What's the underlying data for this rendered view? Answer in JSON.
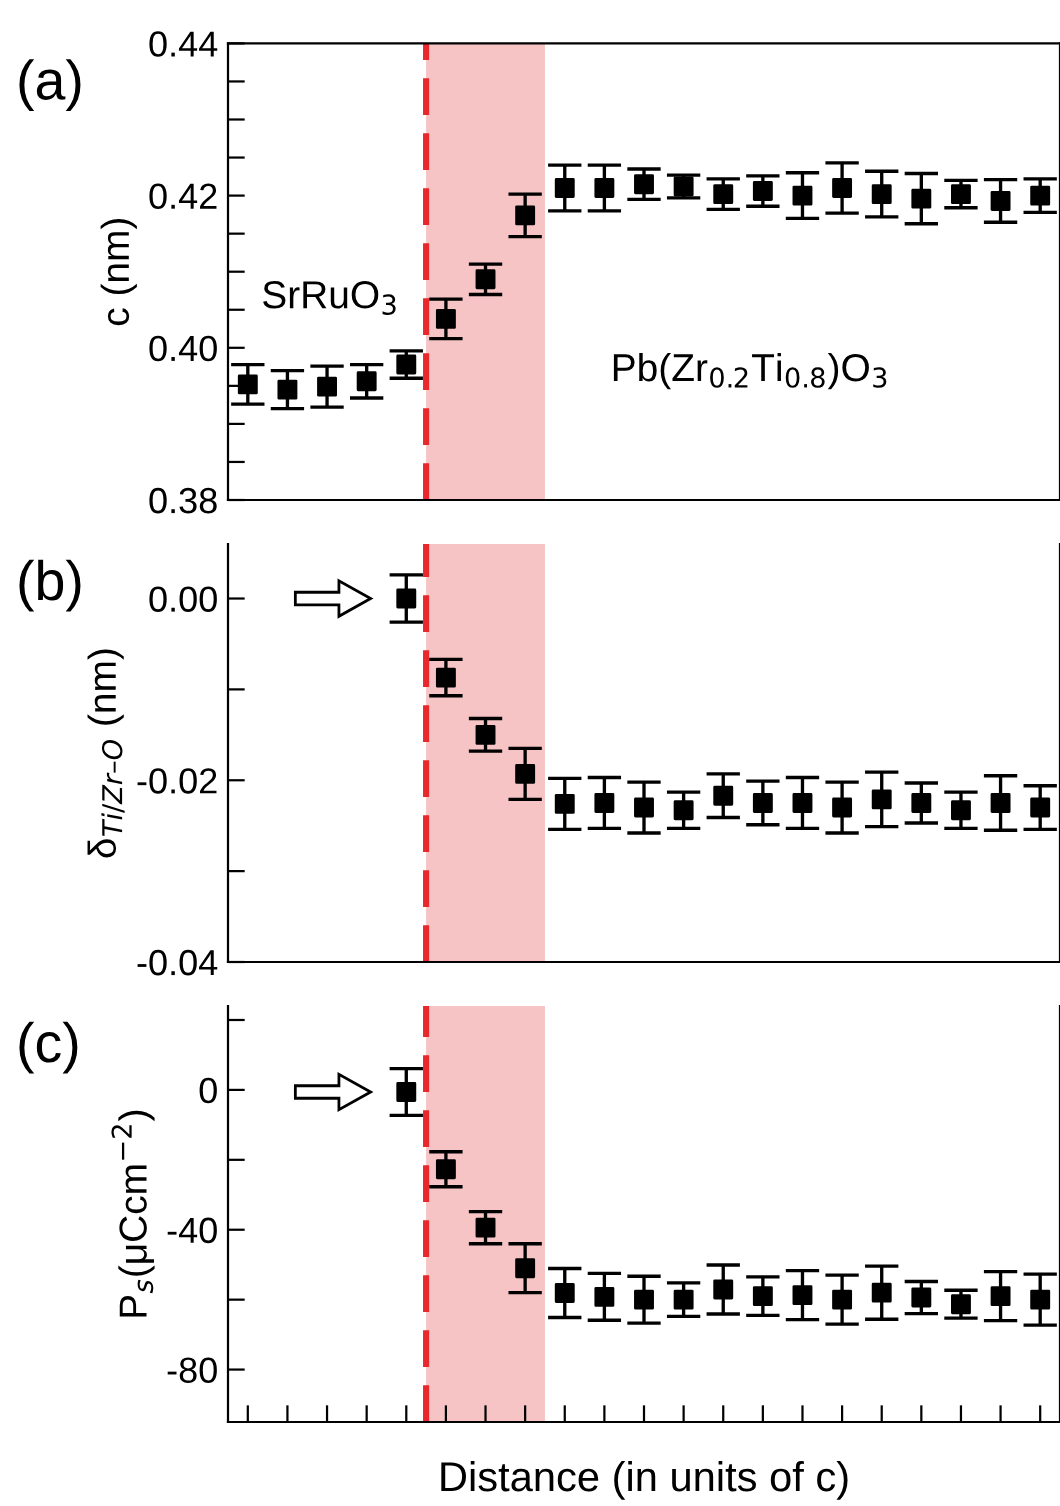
{
  "chart_data": [
    {
      "type": "scatter",
      "ylabel": "c (nm)",
      "annotations": [
        "(a)",
        "SrRuO$_{3}$",
        "Pb(Zr$_{0.2}$Ti$_{0.8}$)O$_{3}$"
      ],
      "categories": [
        null,
        null,
        null,
        null,
        null,
        null,
        null,
        null,
        null,
        null,
        null,
        null,
        null,
        null,
        null,
        null,
        null,
        null,
        null,
        null,
        null
      ],
      "series": [
        {
          "color": "#000000",
          "values": [
            0.3952,
            0.3945,
            0.3949,
            0.3956,
            0.3978,
            0.4038,
            0.409,
            0.4174,
            0.421,
            0.421,
            0.4215,
            0.4212,
            0.4202,
            0.4206,
            0.42,
            0.421,
            0.4202,
            0.4196,
            0.4202,
            0.4193,
            0.42
          ],
          "errors": [
            0.0026,
            0.0025,
            0.0027,
            0.0022,
            0.0018,
            0.0026,
            0.002,
            0.0028,
            0.003,
            0.003,
            0.002,
            0.0015,
            0.002,
            0.002,
            0.003,
            0.0033,
            0.003,
            0.0033,
            0.0018,
            0.0028,
            0.0022
          ]
        }
      ],
      "ylim": [
        0.38,
        0.44
      ],
      "yticks": [
        0.38,
        {
          "value": 0.385,
          "label": null
        },
        {
          "value": 0.39,
          "label": null
        },
        {
          "value": 0.395,
          "label": null
        },
        {
          "value": 0.4,
          "label": "0.40"
        },
        {
          "value": 0.405,
          "label": null
        },
        {
          "value": 0.41,
          "label": null
        },
        {
          "value": 0.415,
          "label": null
        },
        0.42,
        {
          "value": 0.425,
          "label": null
        },
        {
          "value": 0.43,
          "label": null
        },
        {
          "value": 0.435,
          "label": null
        },
        0.44
      ],
      "marker": "square",
      "tick_labels": "y",
      "grid": false,
      "legend": false
    },
    {
      "type": "scatter",
      "ylabel": "δ$_{Ti/Zr–O}$ (nm)",
      "annotations": [
        "(b)"
      ],
      "categories": [
        null,
        null,
        null,
        null,
        null,
        null,
        null,
        null,
        null,
        null,
        null,
        null,
        null,
        null,
        null,
        null,
        null,
        null,
        null,
        null,
        null
      ],
      "series": [
        {
          "color": "#000000",
          "values": [
            null,
            null,
            null,
            null,
            0.0,
            -0.0087,
            -0.015,
            -0.0193,
            -0.0226,
            -0.0225,
            -0.023,
            -0.0233,
            -0.0217,
            -0.0225,
            -0.0225,
            -0.023,
            -0.0221,
            -0.0225,
            -0.0233,
            -0.0225,
            -0.023
          ],
          "errors": [
            null,
            null,
            null,
            null,
            0.0026,
            0.002,
            0.0018,
            0.0028,
            0.0028,
            0.0028,
            0.0028,
            0.002,
            0.0024,
            0.0024,
            0.0028,
            0.0028,
            0.003,
            0.0022,
            0.002,
            0.003,
            0.0024
          ]
        }
      ],
      "ylim": [
        -0.04,
        0.006
      ],
      "yticks": [
        {
          "value": -0.04,
          "label": "-0.04"
        },
        {
          "value": -0.03,
          "label": null
        },
        {
          "value": -0.02,
          "label": "-0.02"
        },
        {
          "value": -0.01,
          "label": null
        },
        {
          "value": 0.0,
          "label": "0.00"
        }
      ],
      "marker": "square",
      "tick_labels": "y",
      "grid": false,
      "legend": false
    },
    {
      "type": "scatter",
      "ylabel": "P$_{s}$(μCcm$^{−2}$)",
      "xlabel": "Distance (in units of c)",
      "annotations": [
        "(c)"
      ],
      "categories": [
        null,
        null,
        null,
        null,
        null,
        null,
        null,
        null,
        null,
        null,
        null,
        null,
        null,
        null,
        null,
        null,
        null,
        null,
        null,
        null,
        null
      ],
      "series": [
        {
          "color": "#000000",
          "values": [
            null,
            null,
            null,
            null,
            -0.6,
            -22.7,
            -39.4,
            -51,
            -58.1,
            -59.2,
            -60,
            -60,
            -57.1,
            -59,
            -58.7,
            -60,
            -58,
            -59.4,
            -61.3,
            -59,
            -60
          ],
          "errors": [
            null,
            null,
            null,
            null,
            6.7,
            5,
            4.6,
            7,
            7,
            6.7,
            6.7,
            4.8,
            7,
            5.5,
            7,
            7,
            7.6,
            4.6,
            4,
            7,
            7.3
          ]
        }
      ],
      "ylim": [
        -95,
        24
      ],
      "yticks": [
        {
          "value": -80,
          "label": "-80"
        },
        {
          "value": -60,
          "label": null
        },
        {
          "value": -40,
          "label": "-40"
        },
        {
          "value": -20,
          "label": null
        },
        0,
        {
          "value": 20,
          "label": null
        }
      ],
      "marker": "square",
      "tick_labels": "y",
      "grid": false,
      "legend": false
    }
  ]
}
